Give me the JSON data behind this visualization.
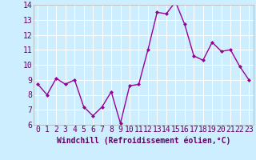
{
  "x": [
    0,
    1,
    2,
    3,
    4,
    5,
    6,
    7,
    8,
    9,
    10,
    11,
    12,
    13,
    14,
    15,
    16,
    17,
    18,
    19,
    20,
    21,
    22,
    23
  ],
  "y": [
    8.7,
    8.0,
    9.1,
    8.7,
    9.0,
    7.2,
    6.6,
    7.2,
    8.2,
    6.1,
    8.6,
    8.7,
    11.0,
    13.5,
    13.4,
    14.2,
    12.7,
    10.6,
    10.3,
    11.5,
    10.9,
    11.0,
    9.9,
    9.0
  ],
  "line_color": "#990099",
  "marker": "D",
  "marker_size": 2,
  "linewidth": 1.0,
  "xlabel": "Windchill (Refroidissement éolien,°C)",
  "xlabel_fontsize": 7,
  "ylim": [
    6,
    14
  ],
  "yticks": [
    6,
    7,
    8,
    9,
    10,
    11,
    12,
    13,
    14
  ],
  "xticks": [
    0,
    1,
    2,
    3,
    4,
    5,
    6,
    7,
    8,
    9,
    10,
    11,
    12,
    13,
    14,
    15,
    16,
    17,
    18,
    19,
    20,
    21,
    22,
    23
  ],
  "background_color": "#cceeff",
  "grid_color": "#ffffff",
  "tick_fontsize": 7,
  "spine_color": "#aaaaaa",
  "label_color": "#660066"
}
